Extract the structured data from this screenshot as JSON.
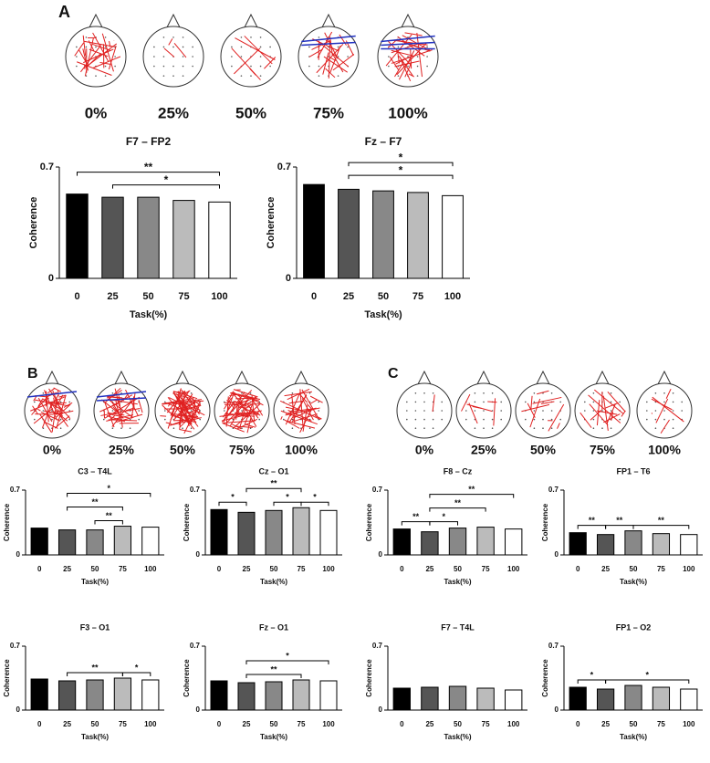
{
  "panels": [
    {
      "label": "A",
      "maps": [
        "0%",
        "25%",
        "50%",
        "75%",
        "100%"
      ]
    },
    {
      "label": "B",
      "maps": [
        "0%",
        "25%",
        "50%",
        "75%",
        "100%"
      ]
    },
    {
      "label": "C",
      "maps": [
        "0%",
        "25%",
        "50%",
        "75%",
        "100%"
      ]
    }
  ],
  "chart_data": [
    {
      "type": "bar",
      "title": "F7 – FP2",
      "x_label": "Task(%)",
      "y_label": "Coherence",
      "categories": [
        "0",
        "25",
        "50",
        "75",
        "100"
      ],
      "values": [
        0.53,
        0.51,
        0.51,
        0.49,
        0.48
      ],
      "colors": [
        "#000000",
        "#555555",
        "#888888",
        "#bbbbbb",
        "#ffffff"
      ],
      "ylim": [
        0,
        0.7
      ],
      "yticks": [
        0,
        0.7
      ],
      "annotations": [
        {
          "between": [
            "0",
            "100"
          ],
          "label": "**"
        },
        {
          "between": [
            "25",
            "100"
          ],
          "label": "*"
        }
      ]
    },
    {
      "type": "bar",
      "title": "Fz – F7",
      "x_label": "Task(%)",
      "y_label": "Coherence",
      "categories": [
        "0",
        "25",
        "50",
        "75",
        "100"
      ],
      "values": [
        0.59,
        0.56,
        0.55,
        0.54,
        0.52
      ],
      "colors": [
        "#000000",
        "#555555",
        "#888888",
        "#bbbbbb",
        "#ffffff"
      ],
      "ylim": [
        0,
        0.7
      ],
      "yticks": [
        0,
        0.7
      ],
      "annotations": [
        {
          "between": [
            "25",
            "100"
          ],
          "label": "*"
        },
        {
          "between": [
            "25",
            "100"
          ],
          "label": "*"
        }
      ]
    },
    {
      "type": "bar",
      "title": "C3 – T4L",
      "x_label": "Task(%)",
      "y_label": "Coherence",
      "categories": [
        "0",
        "25",
        "50",
        "75",
        "100"
      ],
      "values": [
        0.29,
        0.27,
        0.27,
        0.31,
        0.3
      ],
      "colors": [
        "#000000",
        "#555555",
        "#888888",
        "#bbbbbb",
        "#ffffff"
      ],
      "ylim": [
        0,
        0.7
      ],
      "yticks": [
        0,
        0.7
      ],
      "annotations": [
        {
          "between": [
            "25",
            "100"
          ],
          "label": "*"
        },
        {
          "between": [
            "25",
            "75"
          ],
          "label": "**"
        },
        {
          "between": [
            "50",
            "75"
          ],
          "label": "**"
        }
      ]
    },
    {
      "type": "bar",
      "title": "Cz – O1",
      "x_label": "Task(%)",
      "y_label": "Coherence",
      "categories": [
        "0",
        "25",
        "50",
        "75",
        "100"
      ],
      "values": [
        0.49,
        0.46,
        0.48,
        0.51,
        0.48
      ],
      "colors": [
        "#000000",
        "#555555",
        "#888888",
        "#bbbbbb",
        "#ffffff"
      ],
      "ylim": [
        0,
        0.7
      ],
      "yticks": [
        0,
        0.7
      ],
      "annotations": [
        {
          "between": [
            "25",
            "75"
          ],
          "label": "**"
        },
        {
          "between": [
            "0",
            "25"
          ],
          "label": "*"
        },
        {
          "between": [
            "50",
            "75"
          ],
          "label": "*"
        },
        {
          "between": [
            "75",
            "100"
          ],
          "label": "*"
        }
      ]
    },
    {
      "type": "bar",
      "title": "F3 – O1",
      "x_label": "Task(%)",
      "y_label": "Coherence",
      "categories": [
        "0",
        "25",
        "50",
        "75",
        "100"
      ],
      "values": [
        0.34,
        0.32,
        0.33,
        0.35,
        0.33
      ],
      "colors": [
        "#000000",
        "#555555",
        "#888888",
        "#bbbbbb",
        "#ffffff"
      ],
      "ylim": [
        0,
        0.7
      ],
      "yticks": [
        0,
        0.7
      ],
      "annotations": [
        {
          "between": [
            "25",
            "75"
          ],
          "label": "**"
        },
        {
          "between": [
            "75",
            "100"
          ],
          "label": "*"
        }
      ]
    },
    {
      "type": "bar",
      "title": "Fz – O1",
      "x_label": "Task(%)",
      "y_label": "Coherence",
      "categories": [
        "0",
        "25",
        "50",
        "75",
        "100"
      ],
      "values": [
        0.32,
        0.3,
        0.31,
        0.33,
        0.32
      ],
      "colors": [
        "#000000",
        "#555555",
        "#888888",
        "#bbbbbb",
        "#ffffff"
      ],
      "ylim": [
        0,
        0.7
      ],
      "yticks": [
        0,
        0.7
      ],
      "annotations": [
        {
          "between": [
            "25",
            "100"
          ],
          "label": "*"
        },
        {
          "between": [
            "25",
            "75"
          ],
          "label": "**"
        }
      ]
    },
    {
      "type": "bar",
      "title": "F8 – Cz",
      "x_label": "Task(%)",
      "y_label": "Coherence",
      "categories": [
        "0",
        "25",
        "50",
        "75",
        "100"
      ],
      "values": [
        0.28,
        0.25,
        0.29,
        0.3,
        0.28
      ],
      "colors": [
        "#000000",
        "#555555",
        "#888888",
        "#bbbbbb",
        "#ffffff"
      ],
      "ylim": [
        0,
        0.7
      ],
      "yticks": [
        0,
        0.7
      ],
      "annotations": [
        {
          "between": [
            "25",
            "100"
          ],
          "label": "**"
        },
        {
          "between": [
            "25",
            "75"
          ],
          "label": "**"
        },
        {
          "between": [
            "25",
            "50"
          ],
          "label": "*"
        },
        {
          "between": [
            "0",
            "25"
          ],
          "label": "**"
        }
      ]
    },
    {
      "type": "bar",
      "title": "FP1 – T6",
      "x_label": "Task(%)",
      "y_label": "Coherence",
      "categories": [
        "0",
        "25",
        "50",
        "75",
        "100"
      ],
      "values": [
        0.24,
        0.22,
        0.26,
        0.23,
        0.22
      ],
      "colors": [
        "#000000",
        "#555555",
        "#888888",
        "#bbbbbb",
        "#ffffff"
      ],
      "ylim": [
        0,
        0.7
      ],
      "yticks": [
        0,
        0.7
      ],
      "annotations": [
        {
          "between": [
            "50",
            "100"
          ],
          "label": "**"
        },
        {
          "between": [
            "0",
            "25"
          ],
          "label": "**"
        },
        {
          "between": [
            "25",
            "50"
          ],
          "label": "**"
        }
      ]
    },
    {
      "type": "bar",
      "title": "F7 – T4L",
      "x_label": "Task(%)",
      "y_label": "Coherence",
      "categories": [
        "0",
        "25",
        "50",
        "75",
        "100"
      ],
      "values": [
        0.24,
        0.25,
        0.26,
        0.24,
        0.22
      ],
      "colors": [
        "#000000",
        "#555555",
        "#888888",
        "#bbbbbb",
        "#ffffff"
      ],
      "ylim": [
        0,
        0.7
      ],
      "yticks": [
        0,
        0.7
      ],
      "annotations": []
    },
    {
      "type": "bar",
      "title": "FP1 – O2",
      "x_label": "Task(%)",
      "y_label": "Coherence",
      "categories": [
        "0",
        "25",
        "50",
        "75",
        "100"
      ],
      "values": [
        0.25,
        0.23,
        0.27,
        0.25,
        0.23
      ],
      "colors": [
        "#000000",
        "#555555",
        "#888888",
        "#bbbbbb",
        "#ffffff"
      ],
      "ylim": [
        0,
        0.7
      ],
      "yticks": [
        0,
        0.7
      ],
      "annotations": [
        {
          "between": [
            "25",
            "100"
          ],
          "label": "*"
        },
        {
          "between": [
            "0",
            "25"
          ],
          "label": "*"
        }
      ]
    }
  ]
}
